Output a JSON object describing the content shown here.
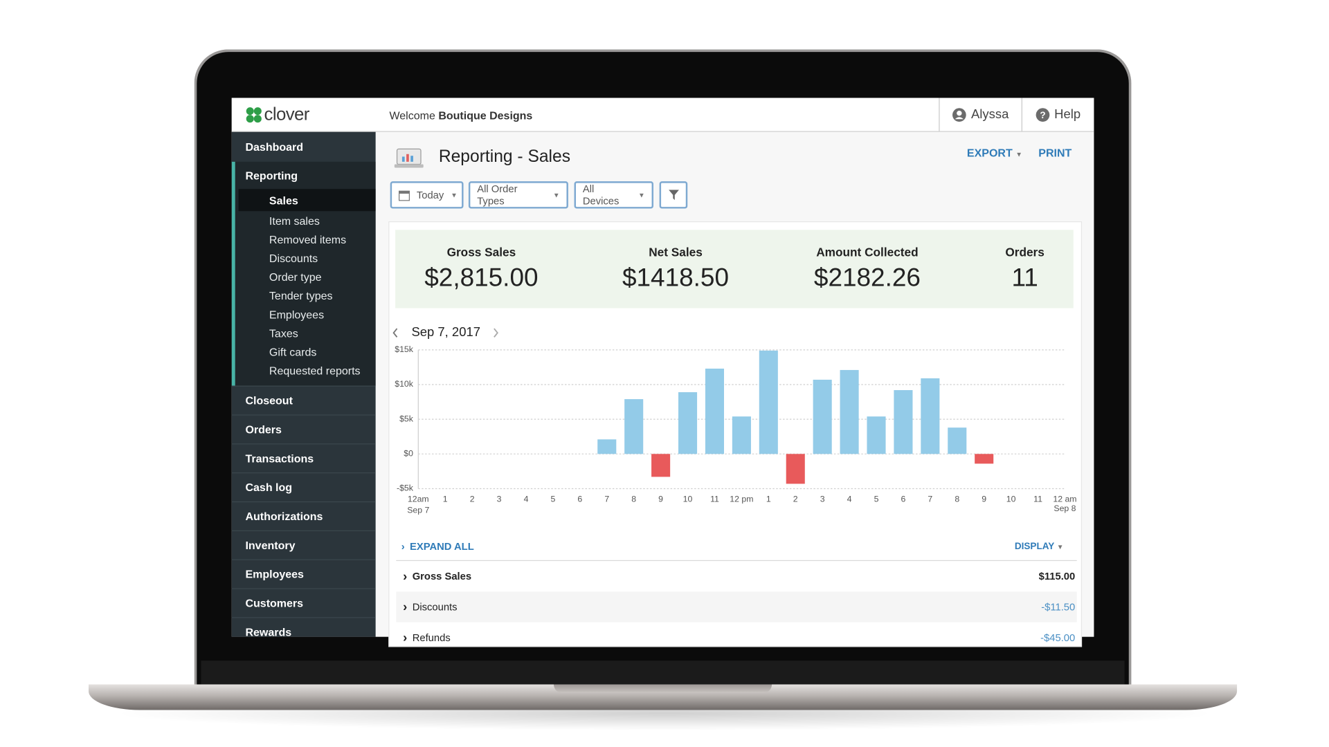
{
  "header": {
    "logo": "clover",
    "welcome": "Welcome",
    "business": "Boutique Designs",
    "user": "Alyssa",
    "help": "Help"
  },
  "sidebar": {
    "top": [
      "Dashboard"
    ],
    "section": "Reporting",
    "submenu": [
      "Sales",
      "Item sales",
      "Removed items",
      "Discounts",
      "Order type",
      "Tender types",
      "Employees",
      "Taxes",
      "Gift cards",
      "Requested reports"
    ],
    "rest": [
      "Closeout",
      "Orders",
      "Transactions",
      "Cash log",
      "Authorizations",
      "Inventory",
      "Employees",
      "Customers",
      "Rewards"
    ]
  },
  "page": {
    "title": "Reporting - Sales",
    "actions": [
      "EXPORT",
      "PRINT"
    ],
    "filters": [
      "Today",
      "All Order Types",
      "All Devices"
    ]
  },
  "summary": [
    {
      "label": "Gross Sales",
      "value": "$2,815.00"
    },
    {
      "label": "Net Sales",
      "value": "$1418.50"
    },
    {
      "label": "Amount Collected",
      "value": "$2182.26"
    },
    {
      "label": "Orders",
      "value": "11"
    }
  ],
  "chart_data": {
    "type": "bar",
    "title": "Sep 7, 2017",
    "categories": [
      "12am",
      "1",
      "2",
      "3",
      "4",
      "5",
      "6",
      "7",
      "8",
      "9",
      "10",
      "11",
      "12 pm",
      "1",
      "2",
      "3",
      "4",
      "5",
      "6",
      "7",
      "8",
      "9",
      "10",
      "11",
      "12 am"
    ],
    "x_date_labels": [
      "Sep 7",
      "Sep 8"
    ],
    "values": [
      null,
      null,
      null,
      null,
      null,
      null,
      null,
      2100,
      7900,
      -3300,
      8900,
      12300,
      5400,
      14900,
      -4300,
      10700,
      12100,
      5400,
      9200,
      10900,
      3800,
      -1400,
      null,
      null,
      null
    ],
    "color": "#93cbe8",
    "negative_color": "#e85a5b",
    "ylim": [
      -5000,
      15000
    ],
    "yticks": [
      {
        "value": -5000,
        "label": "-$5k"
      },
      {
        "value": 0,
        "label": "$0"
      },
      {
        "value": 5000,
        "label": "$5k"
      },
      {
        "value": 10000,
        "label": "$10k"
      },
      {
        "value": 15000,
        "label": "$15k"
      }
    ],
    "grid": true
  },
  "details": {
    "expand": "EXPAND ALL",
    "display": "DISPLAY",
    "rows": [
      {
        "label": "Gross Sales",
        "value": "$115.00"
      },
      {
        "label": "Discounts",
        "value": "-$11.50"
      },
      {
        "label": "Refunds",
        "value": "-$45.00"
      }
    ]
  }
}
